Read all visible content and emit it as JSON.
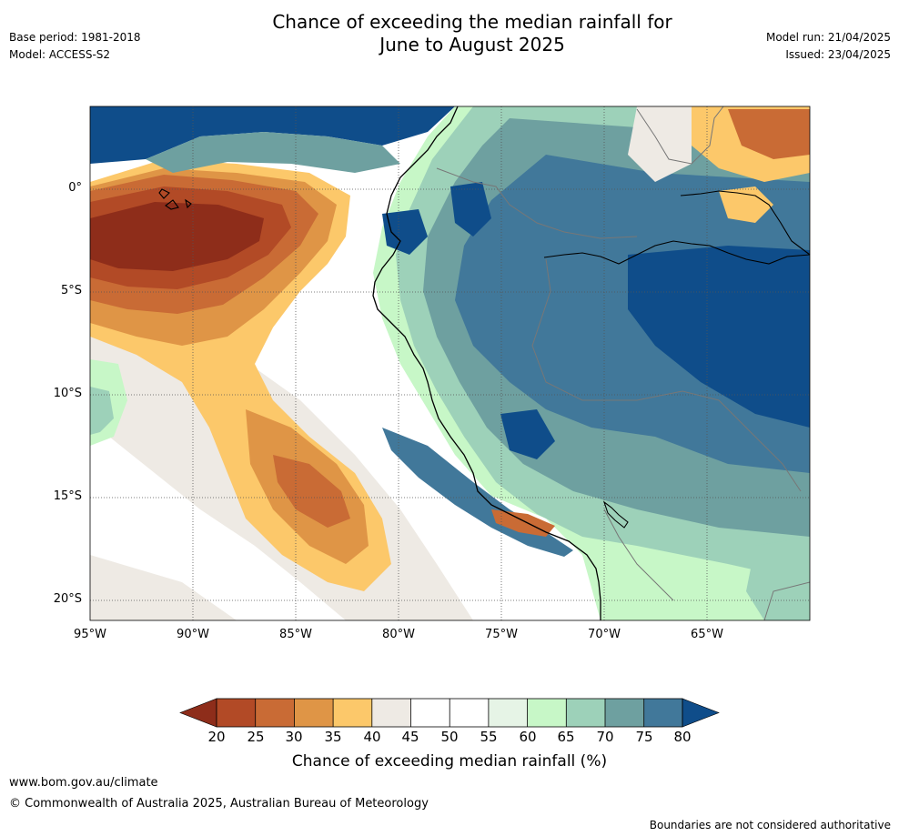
{
  "header": {
    "title_line1": "Chance of exceeding the median rainfall for",
    "title_line2": "June to August 2025",
    "base_period": "Base period: 1981-2018",
    "model": "Model: ACCESS-S2",
    "model_run": "Model run: 21/04/2025",
    "issued": "Issued: 23/04/2025"
  },
  "map": {
    "lat_labels": [
      "0°",
      "5°S",
      "10°S",
      "15°S",
      "20°S"
    ],
    "lon_labels": [
      "95°W",
      "90°W",
      "85°W",
      "80°W",
      "75°W",
      "70°W",
      "65°W"
    ],
    "colors": {
      "p20": "#8e2d1a",
      "p25": "#b24a26",
      "p30": "#c96b35",
      "p35": "#df9546",
      "p40": "#fcc86a",
      "p45": "#eeeae4",
      "p50": "#ffffff",
      "p55": "#ffffff",
      "p60": "#e6f4e6",
      "p65": "#c7f7c7",
      "p70": "#9dd1b9",
      "p75": "#6ea0a0",
      "p80": "#41789a",
      "p85": "#0f4d8a"
    }
  },
  "colorbar": {
    "ticks": [
      "20",
      "25",
      "30",
      "35",
      "40",
      "45",
      "50",
      "55",
      "60",
      "65",
      "70",
      "75",
      "80"
    ],
    "title": "Chance of exceeding median rainfall (%)"
  },
  "footer": {
    "website": "www.bom.gov.au/climate",
    "copyright": "© Commonwealth of Australia 2025, Australian Bureau of Meteorology",
    "disclaimer": "Boundaries are not considered authoritative"
  }
}
